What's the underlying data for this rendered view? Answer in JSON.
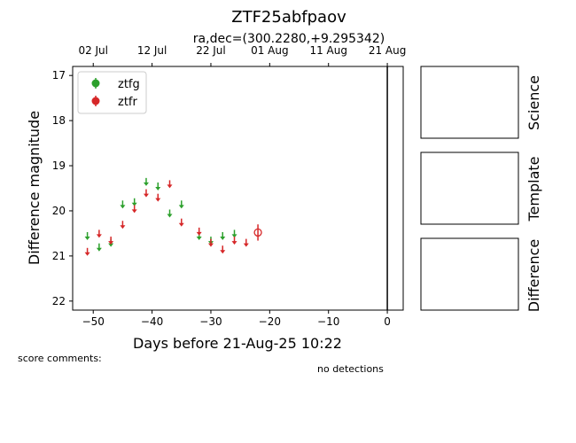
{
  "title": "ZTF25abfpaov",
  "subtitle": "ra,dec=(300.2280,+9.295342)",
  "score_comments": "score comments:",
  "no_detections": "no detections",
  "panels": [
    "Science",
    "Template",
    "Difference"
  ],
  "chart_data": {
    "type": "scatter",
    "xlabel": "Days before 21-Aug-25 10:22",
    "ylabel": "Difference magnitude",
    "xlim": [
      -53.5,
      2.7
    ],
    "ylim": [
      22.2,
      16.8
    ],
    "y_inverted": true,
    "x_ticks": [
      -50,
      -40,
      -30,
      -20,
      -10,
      0
    ],
    "x_tick_labels": [
      "−50",
      "−40",
      "−30",
      "−20",
      "−10",
      "0"
    ],
    "y_ticks": [
      17,
      18,
      19,
      20,
      21,
      22
    ],
    "y_tick_labels": [
      "17",
      "18",
      "19",
      "20",
      "21",
      "22"
    ],
    "top_axis_ticks": [
      -50,
      -40,
      -30,
      -20,
      -10,
      0
    ],
    "top_axis_labels": [
      "02 Jul",
      "12 Jul",
      "22 Jul",
      "01 Aug",
      "11 Aug",
      "21 Aug"
    ],
    "vline_x": 0,
    "legend_position": "top-left",
    "series": [
      {
        "name": "ztfg",
        "color": "#2ca02c",
        "upper_limits": [
          {
            "x": -51.0,
            "y": 20.55
          },
          {
            "x": -49.0,
            "y": 20.8
          },
          {
            "x": -47.0,
            "y": 20.7
          },
          {
            "x": -45.0,
            "y": 19.85
          },
          {
            "x": -43.0,
            "y": 19.8
          },
          {
            "x": -41.0,
            "y": 19.35
          },
          {
            "x": -39.0,
            "y": 19.45
          },
          {
            "x": -37.0,
            "y": 20.05
          },
          {
            "x": -35.0,
            "y": 19.85
          },
          {
            "x": -32.0,
            "y": 20.55
          },
          {
            "x": -30.0,
            "y": 20.65
          },
          {
            "x": -28.0,
            "y": 20.55
          },
          {
            "x": -26.0,
            "y": 20.5
          }
        ],
        "detections": []
      },
      {
        "name": "ztfr",
        "color": "#d62728",
        "upper_limits": [
          {
            "x": -51.0,
            "y": 20.9
          },
          {
            "x": -49.0,
            "y": 20.5
          },
          {
            "x": -47.0,
            "y": 20.65
          },
          {
            "x": -45.0,
            "y": 20.3
          },
          {
            "x": -43.0,
            "y": 19.95
          },
          {
            "x": -41.0,
            "y": 19.6
          },
          {
            "x": -39.0,
            "y": 19.7
          },
          {
            "x": -37.0,
            "y": 19.4
          },
          {
            "x": -35.0,
            "y": 20.25
          },
          {
            "x": -32.0,
            "y": 20.45
          },
          {
            "x": -30.0,
            "y": 20.7
          },
          {
            "x": -28.0,
            "y": 20.85
          },
          {
            "x": -26.0,
            "y": 20.65
          },
          {
            "x": -24.0,
            "y": 20.7
          }
        ],
        "detections": [
          {
            "x": -22.0,
            "y": 20.48,
            "err": 0.18
          }
        ]
      }
    ]
  }
}
